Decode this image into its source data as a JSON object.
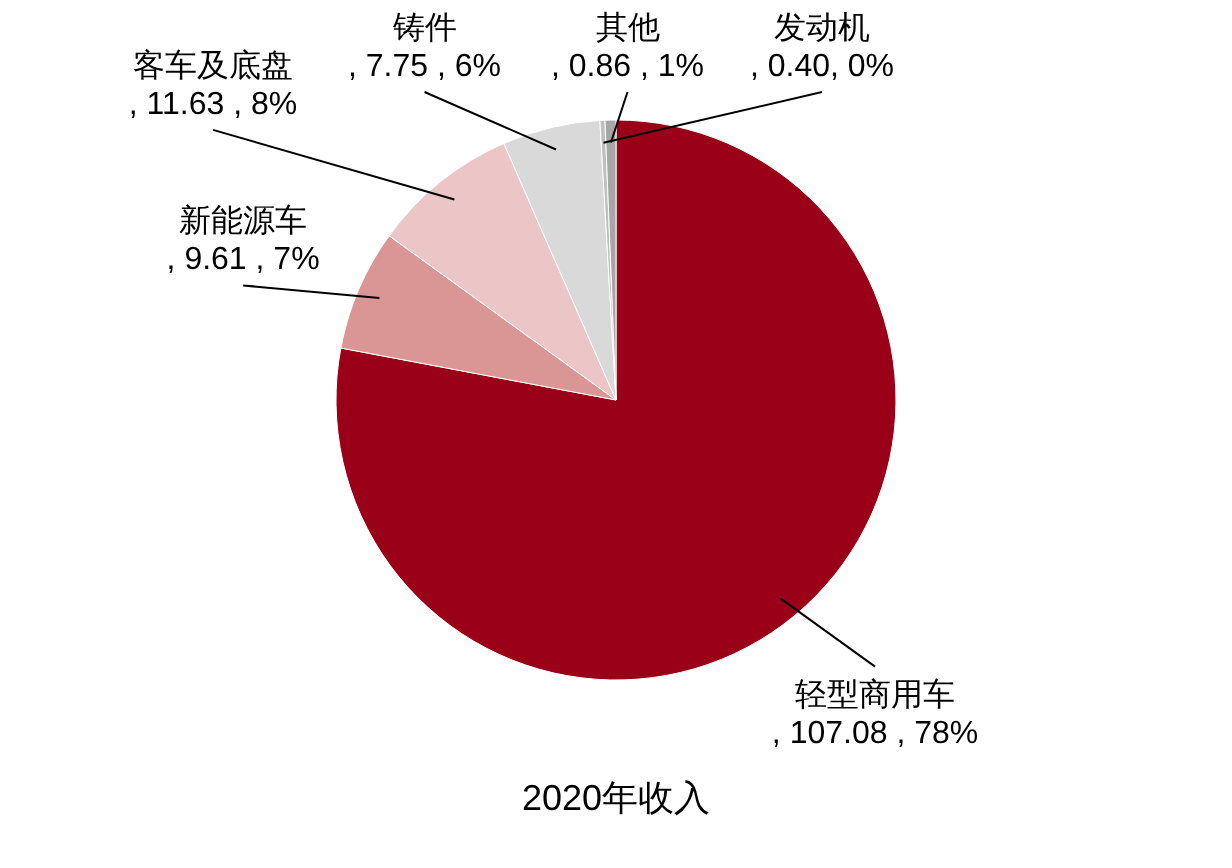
{
  "chart_data": {
    "type": "pie",
    "title": "2020年收入",
    "categories": [
      "轻型商用车",
      "新能源车",
      "客车及底盘",
      "铸件",
      "发动机",
      "其他"
    ],
    "values": [
      107.08,
      9.61,
      11.63,
      7.75,
      0.4,
      0.86
    ],
    "value_labels": [
      ", 107.08 , 78%",
      ", 9.61 , 7%",
      ", 11.63 , 8%",
      ", 7.75 , 6%",
      ", 0.40, 0%",
      ", 0.86 , 1%"
    ],
    "colors": [
      "#9b0019",
      "#d99694",
      "#ecc6c6",
      "#d9d9d9",
      "#bfbfbf",
      "#a6a6a6"
    ],
    "legend": false
  }
}
